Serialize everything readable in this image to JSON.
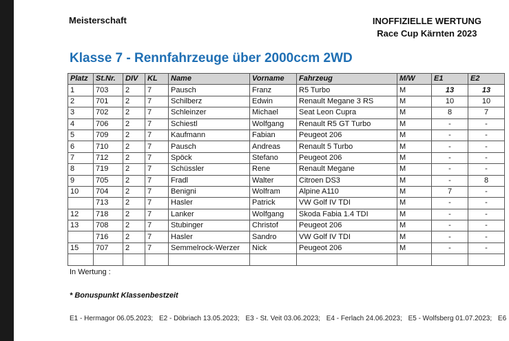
{
  "header": {
    "left": "Meisterschaft",
    "right_line1": "INOFFIZIELLE WERTUNG",
    "right_line2": "Race Cup Kärnten 2023"
  },
  "title": "Klasse 7 - Rennfahrzeuge über 2000ccm 2WD",
  "table": {
    "columns": [
      "Platz",
      "St.Nr.",
      "DIV",
      "KL",
      "Name",
      "Vorname",
      "Fahrzeug",
      "M/W",
      "E1",
      "E2"
    ],
    "rows": [
      {
        "platz": "1",
        "stnr": "703",
        "div": "2",
        "kl": "7",
        "name": "Pausch",
        "vorname": "Franz",
        "fahrzeug": "R5 Turbo",
        "mw": "M",
        "e1": "13",
        "e2": "13"
      },
      {
        "platz": "2",
        "stnr": "701",
        "div": "2",
        "kl": "7",
        "name": "Schilberz",
        "vorname": "Edwin",
        "fahrzeug": "Renault Megane 3 RS",
        "mw": "M",
        "e1": "10",
        "e2": "10"
      },
      {
        "platz": "3",
        "stnr": "702",
        "div": "2",
        "kl": "7",
        "name": "Schleinzer",
        "vorname": "Michael",
        "fahrzeug": "Seat Leon Cupra",
        "mw": "M",
        "e1": "8",
        "e2": "7"
      },
      {
        "platz": "4",
        "stnr": "706",
        "div": "2",
        "kl": "7",
        "name": "Schiestl",
        "vorname": "Wolfgang",
        "fahrzeug": "Renault R5 GT Turbo",
        "mw": "M",
        "e1": "-",
        "e2": "-"
      },
      {
        "platz": "5",
        "stnr": "709",
        "div": "2",
        "kl": "7",
        "name": "Kaufmann",
        "vorname": "Fabian",
        "fahrzeug": "Peugeot 206",
        "mw": "M",
        "e1": "-",
        "e2": "-"
      },
      {
        "platz": "6",
        "stnr": "710",
        "div": "2",
        "kl": "7",
        "name": "Pausch",
        "vorname": "Andreas",
        "fahrzeug": "Renault 5 Turbo",
        "mw": "M",
        "e1": "-",
        "e2": "-"
      },
      {
        "platz": "7",
        "stnr": "712",
        "div": "2",
        "kl": "7",
        "name": "Spöck",
        "vorname": "Stefano",
        "fahrzeug": "Peugeot 206",
        "mw": "M",
        "e1": "-",
        "e2": "-"
      },
      {
        "platz": "8",
        "stnr": "719",
        "div": "2",
        "kl": "7",
        "name": "Schüssler",
        "vorname": "Rene",
        "fahrzeug": "Renault Megane",
        "mw": "M",
        "e1": "-",
        "e2": "-"
      },
      {
        "platz": "9",
        "stnr": "705",
        "div": "2",
        "kl": "7",
        "name": "Fradl",
        "vorname": "Walter",
        "fahrzeug": "Citroen DS3",
        "mw": "M",
        "e1": "-",
        "e2": "8"
      },
      {
        "platz": "10",
        "stnr": "704",
        "div": "2",
        "kl": "7",
        "name": "Benigni",
        "vorname": "Wolfram",
        "fahrzeug": "Alpine A110",
        "mw": "M",
        "e1": "7",
        "e2": "-"
      },
      {
        "platz": "",
        "stnr": "713",
        "div": "2",
        "kl": "7",
        "name": "Hasler",
        "vorname": "Patrick",
        "fahrzeug": "VW Golf IV TDI",
        "mw": "M",
        "e1": "-",
        "e2": "-"
      },
      {
        "platz": "12",
        "stnr": "718",
        "div": "2",
        "kl": "7",
        "name": "Lanker",
        "vorname": "Wolfgang",
        "fahrzeug": "Skoda Fabia 1.4 TDI",
        "mw": "M",
        "e1": "-",
        "e2": "-"
      },
      {
        "platz": "13",
        "stnr": "708",
        "div": "2",
        "kl": "7",
        "name": "Stubinger",
        "vorname": "Christof",
        "fahrzeug": "Peugeot 206",
        "mw": "M",
        "e1": "-",
        "e2": "-"
      },
      {
        "platz": "",
        "stnr": "716",
        "div": "2",
        "kl": "7",
        "name": "Hasler",
        "vorname": "Sandro",
        "fahrzeug": "VW Golf IV TDI",
        "mw": "M",
        "e1": "-",
        "e2": "-"
      },
      {
        "platz": "15",
        "stnr": "707",
        "div": "2",
        "kl": "7",
        "name": "Semmelrock-Werzer",
        "vorname": "Nick",
        "fahrzeug": "Peugeot 206",
        "mw": "M",
        "e1": "-",
        "e2": "-"
      },
      {
        "platz": "",
        "stnr": "",
        "div": "",
        "kl": "",
        "name": "",
        "vorname": "",
        "fahrzeug": "",
        "mw": "",
        "e1": "",
        "e2": ""
      }
    ]
  },
  "notes": {
    "in_wertung": "In Wertung :",
    "bonus": "* Bonuspunkt Klassenbestzeit"
  },
  "footer": [
    "E1 - Hermagor 06.05.2023;",
    "E2 - Döbriach 13.05.2023;",
    "E3 - St. Veit 03.06.2023;",
    "E4 - Ferlach 24.06.2023;",
    "E5 - Wolfsberg 01.07.2023;",
    "E6"
  ]
}
